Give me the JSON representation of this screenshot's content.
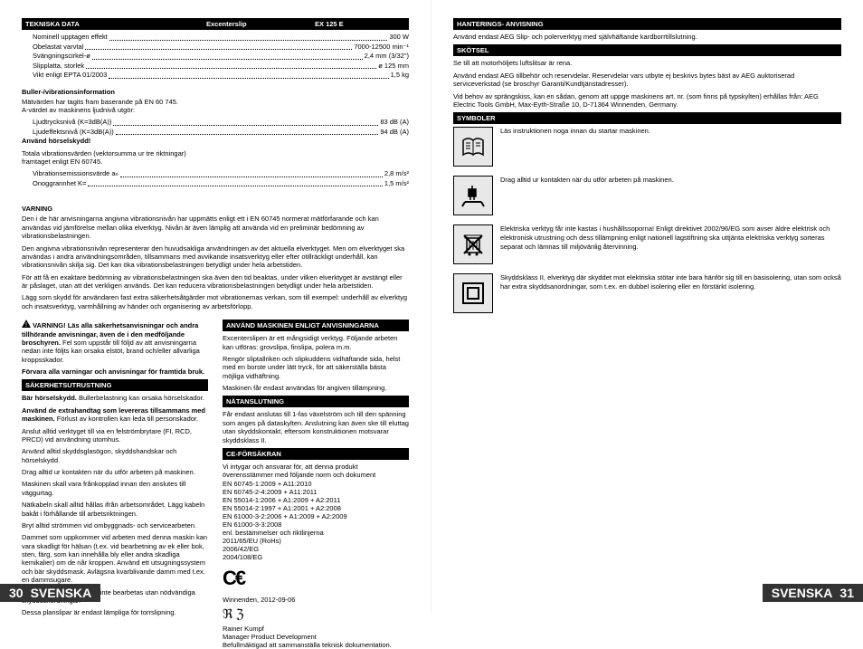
{
  "left": {
    "techHeader": {
      "c1": "TEKNISKA DATA",
      "c2": "Excenterslip",
      "c3": "EX 125 E"
    },
    "techRows": [
      {
        "label": "Nominell upptagen effekt",
        "value": "300 W"
      },
      {
        "label": "Obelastat varvtal",
        "value": "7000-12500 min⁻¹"
      },
      {
        "label": "Svängningscirkel-ø",
        "value": "2,4 mm (3/32\")"
      },
      {
        "label": "Slipplatta, storlek",
        "value": "ø 125 mm"
      },
      {
        "label": "Vikt enligt EPTA 01/2003",
        "value": "1,5 kg"
      }
    ],
    "noiseHead": "Buller-/vibrationsinformation",
    "noisePara": "Mätvärden har tagits fram baserande på EN 60 745.\nA-värdet av maskinens ljudnivå utgör:",
    "noiseRows": [
      {
        "label": "Ljudtrycksnivå (K=3dB(A))",
        "value": "83 dB (A)"
      },
      {
        "label": "Ljudeffektsnivå (K=3dB(A))",
        "value": "94 dB (A)"
      }
    ],
    "wearEar": "Använd hörselskydd!",
    "vibPara": "Totala vibrationsvärden (vektorsumma ur tre riktningar)\nframtaget enligt EN 60745.",
    "vibRows": [
      {
        "label": "Vibrationsemissionsvärde aₕ",
        "value": "2,8 m/s²"
      },
      {
        "label": "Onoggrannhet K=",
        "value": "1,5 m/s²"
      }
    ],
    "warningHead": "VARNING",
    "warnings": [
      "Den i de här anvisningarna angivna vibrationsnivån har uppmätts enligt ett i EN 60745 normerat mätförfarande och kan användas vid jämförelse mellan olika elverktyg. Nivån är även lämplig att använda vid en preliminär bedömning av vibrationsbelastningen.",
      "Den angivna vibrationsnivån representerar den huvudsakliga användningen av det aktuella elverktyget. Men om elverktyget ska användas i andra användningsområden, tillsammans med avvikande insatsverktyg eller efter otillräckligt underhåll, kan vibrationsnivån skilja sig. Det kan öka vibrationsbelastningen betydligt under hela arbetstiden.",
      "För att få en exaktare bedömning av vibrationsbelastningen ska även den tid beaktas, under vilken elverktyget är avstängt eller är påslaget, utan att det verkligen används. Det kan reducera vibrationsbelastningen betydligt under hela arbetstiden.",
      "Lägg som skydd för användaren fast extra säkerhetsåtgärder mot vibrationernas verkan, som till exempel: underhåll av elverktyg och insatsverktyg, varmhållning av händer och organisering av arbetsförlopp."
    ],
    "col1": {
      "warnBox": "VARNING! Läs alla säkerhetsanvisningar och andra tillhörande anvisningar, även de i den medföljande broschyren.",
      "warnBox2": "Fel som uppstår till följd av att anvisningarna nedan inte följts kan orsaka elstöt, brand och/eller allvarliga kroppsskador.",
      "warnBox3": "Förvara alla varningar och anvisningar för framtida bruk.",
      "secHead": "SÄKERHETSUTRUSTNING",
      "secParas": [
        {
          "b": "Bär hörselskydd.",
          "t": " Bullerbelastning kan orsaka hörselskador."
        },
        {
          "b": "Använd de extrahandtag som levereras tillsammans med maskinen.",
          "t": " Förlust av kontrollen kan leda till personskador."
        }
      ],
      "paras": [
        "Anslut alltid verktyget till via en felströmbrytare (FI, RCD, PRCD) vid användning utomhus.",
        "Använd alltid skyddsglasögon, skyddshandskar och hörselskydd.",
        "Drag alltid ur kontakten när du utför arbeten på maskinen.",
        "Maskinen skall vara frånkopplad innan den anslutes till väggurtag.",
        "Nätkabeln skall alltid hållas ifrån arbetsområdet. Lägg kabeln bakåt i förhållande till arbetsriktningen.",
        "Bryt alltid strömmen vid ombyggnads- och servicearbeten.",
        "Dammet som uppkommer vid arbeten med denna maskin kan vara skadligt för hälsan (t.ex. vid bearbetning av ek eller bok, sten, färg, som kan innehålla bly eller andra skadliga kemikalier) om de når kroppen. Använd ett utsugningssystem och bär skyddsmask. Avlägsna kvarblivande damm med t.ex. en dammsugare.",
        "Asbesthaltiga material får inte bearbetas utan nödvändiga skyddsanordningar.",
        "Dessa planslipar är endast lämpliga för torrslipning."
      ]
    },
    "col2": {
      "head1": "ANVÄND MASKINEN ENLIGT ANVISNINGARNA",
      "p1": "Excenterslipen är ett mångsidigt verktyg. Följande arbeten kan utföras: grovslipa, finslipa, polera  m.m.",
      "p2": "Rengör sliptallriken och slipkuddens vidhäftande sida, helst med en borste under lätt tryck, för att säkerställa bästa möjliga vidhäftning.",
      "p3": "Maskinen får endast användas för angiven tillämpning.",
      "head2": "NÄTANSLUTNING",
      "p4": "Får endast anslutas till 1-fas växelström och till den spänning som anges på dataskylten. Anslutning kan även ske till eluttag utan skyddskontakt, eftersom konstruktionen motsvarar skyddsklass II.",
      "head3": "CE-FÖRSÄKRAN",
      "p5": "Vi intygar och ansvarar för, att denna produkt överensstämmer med följande norm och dokument",
      "stds": [
        "EN 60745-1:2009 + A11:2010",
        "EN 60745-2-4:2009 + A11:2011",
        "EN 55014-1:2006 + A1:2009 + A2:2011",
        "EN 55014-2:1997 + A1:2001 + A2:2008",
        "EN 61000-3-2:2006 + A1:2009 + A2:2009",
        "EN 61000-3-3:2008"
      ],
      "p6": "enl. bestämmelser och riktlinjerna",
      "dirs": [
        "2011/65/EU (RoHs)",
        "2006/42/EG",
        "2004/108/EG"
      ],
      "date": "Winnenden, 2012-09-06",
      "sigName": "Rainer Kumpf",
      "sigTitle": "Manager Product Development",
      "sigRole": "Befullmäktigad att sammanställa teknisk dokumentation."
    },
    "pageNum": "30",
    "pageLang": "SVENSKA"
  },
  "right": {
    "head1": "HANTERINGS- ANVISNING",
    "p1": "Använd endast AEG Slip- och polerverktyg med självhäftande kardborrtillslutning.",
    "head2": "SKÖTSEL",
    "p2": "Se till att motorhöljets luftslitsar är rena.",
    "p3": "Använd endast AEG tillbehör och reservdelar. Reservdelar vars utbyte ej beskrivs bytes bäst av AEG auktoriserad serviceverkstad (se broschyr Garanti/Kundtjänstadresser).",
    "p4": "Vid behov av sprängskiss, kan en sådan, genom att uppge maskinens art. nr. (som finns på typskylten) erhållas från: AEG Electric Tools GmbH, Max-Eyth-Straße 10, D-71364 Winnenden, Germany.",
    "head3": "SYMBOLER",
    "sym1": "Läs instruktionen noga innan du startar maskinen.",
    "sym2": "Drag alltid ur kontakten när du utför arbeten på maskinen.",
    "sym3": "Elektriska verktyg får inte kastas i hushållssoporna! Enligt direktivet 2002/96/EG som avser äldre elektrisk och elektronisk utrustning och dess tillämpning enligt nationell lagstiftning ska uttjänta elektriska verktyg sorteras separat och lämnas till miljövänlig återvinning.",
    "sym4": "Skyddsklass II, elverktyg där skyddet mot elektriska stötar inte bara hänför sig till en basisolering, utan som också har extra skyddsanordningar, som t.ex. en dubbel isolering eller en förstärkt isolering.",
    "pageNum": "31",
    "pageLang": "SVENSKA"
  }
}
